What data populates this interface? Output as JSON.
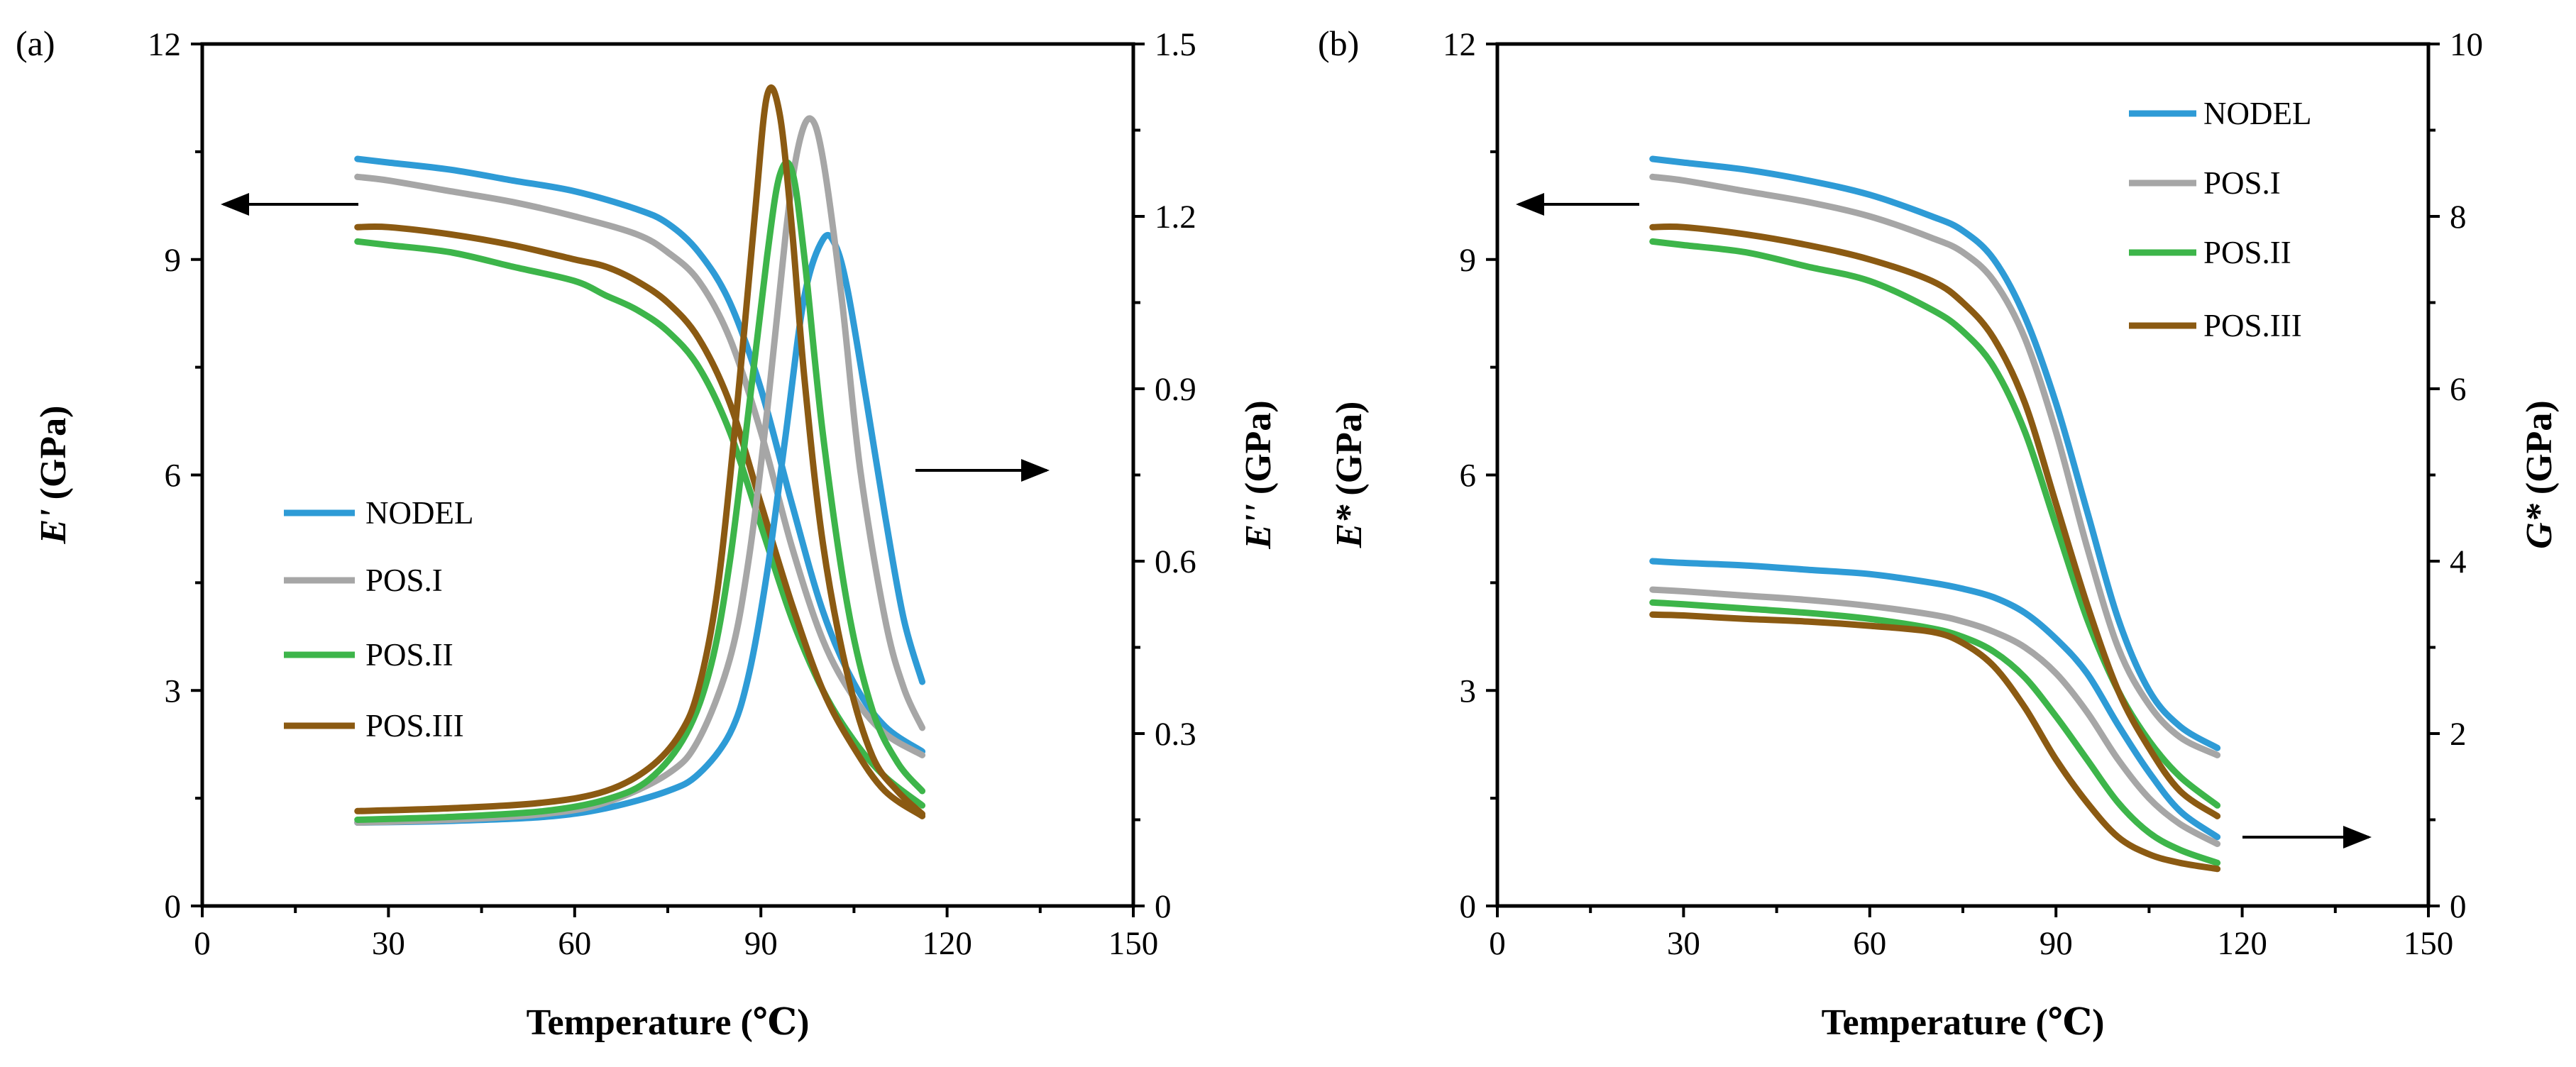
{
  "chart_data": [
    {
      "panel_label": "(a)",
      "type": "line",
      "xlabel": "Temperature (℃)",
      "ylabel_left_main": "E'",
      "ylabel_left_unit": " (GPa)",
      "ylabel_right_main": "E''",
      "ylabel_right_unit": " (GPa)",
      "xlim": [
        0,
        150
      ],
      "ylim_left": [
        0,
        12
      ],
      "ylim_right": [
        0,
        1.5
      ],
      "xticks": [
        "0",
        "30",
        "60",
        "90",
        "120",
        "150"
      ],
      "yticks_left": [
        "0",
        "3",
        "6",
        "9",
        "12"
      ],
      "yticks_right": [
        "0",
        "0.3",
        "0.6",
        "0.9",
        "1.2",
        "1.5"
      ],
      "legend": [
        "NODEL",
        "POS.I",
        "POS.II",
        "POS.III"
      ],
      "colors": [
        "#2e9bd6",
        "#a6a6a6",
        "#3db54a",
        "#8b5a12"
      ],
      "series": [
        {
          "name": "NODEL",
          "axis": "left",
          "color": "#2e9bd6",
          "x": [
            25,
            30,
            40,
            50,
            60,
            70,
            75,
            80,
            85,
            90,
            95,
            100,
            105,
            110,
            116
          ],
          "y": [
            10.4,
            10.35,
            10.25,
            10.1,
            9.95,
            9.7,
            9.5,
            9.1,
            8.4,
            7.2,
            5.6,
            4.1,
            3.1,
            2.5,
            2.15
          ]
        },
        {
          "name": "POS.I",
          "axis": "left",
          "color": "#a6a6a6",
          "x": [
            25,
            30,
            40,
            50,
            60,
            70,
            75,
            80,
            85,
            90,
            95,
            100,
            105,
            110,
            116
          ],
          "y": [
            10.15,
            10.1,
            9.95,
            9.8,
            9.6,
            9.35,
            9.1,
            8.7,
            7.9,
            6.6,
            5.0,
            3.7,
            2.9,
            2.4,
            2.1
          ]
        },
        {
          "name": "POS.II",
          "axis": "left",
          "color": "#3db54a",
          "x": [
            25,
            30,
            40,
            50,
            60,
            65,
            70,
            75,
            80,
            85,
            90,
            95,
            100,
            105,
            110,
            116
          ],
          "y": [
            9.25,
            9.2,
            9.1,
            8.9,
            8.7,
            8.5,
            8.3,
            8.0,
            7.5,
            6.6,
            5.3,
            4.0,
            3.0,
            2.3,
            1.8,
            1.4
          ]
        },
        {
          "name": "POS.III",
          "axis": "left",
          "color": "#8b5a12",
          "x": [
            25,
            30,
            40,
            50,
            60,
            65,
            70,
            75,
            80,
            85,
            90,
            95,
            100,
            105,
            110,
            116
          ],
          "y": [
            9.45,
            9.45,
            9.35,
            9.2,
            9.0,
            8.9,
            8.7,
            8.4,
            7.9,
            7.0,
            5.6,
            4.2,
            3.0,
            2.2,
            1.6,
            1.25
          ]
        },
        {
          "name": "NODEL",
          "axis": "right",
          "color": "#2e9bd6",
          "x": [
            25,
            40,
            55,
            65,
            75,
            80,
            85,
            88,
            91,
            94,
            97,
            100,
            102,
            104,
            107,
            110,
            113,
            116
          ],
          "y": [
            0.145,
            0.148,
            0.155,
            0.17,
            0.2,
            0.23,
            0.3,
            0.4,
            0.58,
            0.82,
            1.06,
            1.16,
            1.15,
            1.07,
            0.88,
            0.68,
            0.5,
            0.39
          ]
        },
        {
          "name": "POS.I",
          "axis": "right",
          "color": "#a6a6a6",
          "x": [
            25,
            40,
            55,
            65,
            75,
            80,
            85,
            88,
            91,
            94,
            96,
            98,
            100,
            103,
            106,
            110,
            113,
            116
          ],
          "y": [
            0.145,
            0.15,
            0.16,
            0.18,
            0.23,
            0.29,
            0.43,
            0.6,
            0.86,
            1.17,
            1.32,
            1.37,
            1.3,
            1.06,
            0.76,
            0.5,
            0.38,
            0.31
          ]
        },
        {
          "name": "POS.II",
          "axis": "right",
          "color": "#3db54a",
          "x": [
            25,
            40,
            55,
            65,
            72,
            78,
            82,
            85,
            88,
            91,
            93,
            95,
            97,
            100,
            104,
            108,
            112,
            116
          ],
          "y": [
            0.15,
            0.155,
            0.165,
            0.185,
            0.22,
            0.3,
            0.42,
            0.6,
            0.86,
            1.13,
            1.27,
            1.28,
            1.13,
            0.82,
            0.52,
            0.34,
            0.25,
            0.2
          ]
        },
        {
          "name": "POS.III",
          "axis": "right",
          "color": "#8b5a12",
          "x": [
            25,
            40,
            55,
            65,
            72,
            77,
            80,
            83,
            86,
            89,
            91,
            93,
            95,
            97,
            100,
            104,
            108,
            112,
            116
          ],
          "y": [
            0.165,
            0.17,
            0.18,
            0.2,
            0.24,
            0.3,
            0.38,
            0.55,
            0.85,
            1.2,
            1.41,
            1.38,
            1.18,
            0.92,
            0.63,
            0.4,
            0.26,
            0.2,
            0.16
          ]
        }
      ]
    },
    {
      "panel_label": "(b)",
      "type": "line",
      "xlabel": "Temperature (℃)",
      "ylabel_left_main": "E*",
      "ylabel_left_unit": " (GPa)",
      "ylabel_right_main": "G*",
      "ylabel_right_unit": " (GPa)",
      "xlim": [
        0,
        150
      ],
      "ylim_left": [
        0,
        12
      ],
      "ylim_right": [
        0,
        10
      ],
      "xticks": [
        "0",
        "30",
        "60",
        "90",
        "120",
        "150"
      ],
      "yticks_left": [
        "0",
        "3",
        "6",
        "9",
        "12"
      ],
      "yticks_right": [
        "0",
        "2",
        "4",
        "6",
        "8",
        "10"
      ],
      "legend": [
        "NODEL",
        "POS.I",
        "POS.II",
        "POS.III"
      ],
      "colors": [
        "#2e9bd6",
        "#a6a6a6",
        "#3db54a",
        "#8b5a12"
      ],
      "series": [
        {
          "name": "NODEL",
          "axis": "left",
          "color": "#2e9bd6",
          "x": [
            25,
            30,
            40,
            50,
            60,
            70,
            75,
            80,
            85,
            90,
            95,
            100,
            105,
            110,
            116
          ],
          "y": [
            10.4,
            10.35,
            10.25,
            10.1,
            9.9,
            9.6,
            9.4,
            9.0,
            8.2,
            7.0,
            5.5,
            4.0,
            3.0,
            2.5,
            2.2
          ]
        },
        {
          "name": "POS.I",
          "axis": "left",
          "color": "#a6a6a6",
          "x": [
            25,
            30,
            40,
            50,
            60,
            70,
            75,
            80,
            85,
            90,
            95,
            100,
            105,
            110,
            116
          ],
          "y": [
            10.15,
            10.1,
            9.95,
            9.8,
            9.6,
            9.3,
            9.1,
            8.7,
            7.9,
            6.6,
            5.0,
            3.6,
            2.8,
            2.35,
            2.1
          ]
        },
        {
          "name": "POS.II",
          "axis": "left",
          "color": "#3db54a",
          "x": [
            25,
            30,
            40,
            50,
            60,
            70,
            75,
            80,
            85,
            90,
            95,
            100,
            105,
            110,
            116
          ],
          "y": [
            9.25,
            9.2,
            9.1,
            8.9,
            8.7,
            8.3,
            8.0,
            7.5,
            6.6,
            5.3,
            4.0,
            3.0,
            2.3,
            1.8,
            1.4
          ]
        },
        {
          "name": "POS.III",
          "axis": "left",
          "color": "#8b5a12",
          "x": [
            25,
            30,
            40,
            50,
            60,
            70,
            75,
            80,
            85,
            90,
            95,
            100,
            105,
            110,
            116
          ],
          "y": [
            9.45,
            9.45,
            9.35,
            9.2,
            9.0,
            8.7,
            8.4,
            7.9,
            7.0,
            5.6,
            4.2,
            3.0,
            2.2,
            1.6,
            1.25
          ]
        },
        {
          "name": "NODEL",
          "axis": "right",
          "color": "#2e9bd6",
          "x": [
            25,
            30,
            40,
            50,
            60,
            70,
            75,
            80,
            85,
            90,
            95,
            100,
            105,
            110,
            116
          ],
          "y": [
            4.0,
            3.98,
            3.95,
            3.9,
            3.85,
            3.75,
            3.68,
            3.58,
            3.4,
            3.1,
            2.7,
            2.1,
            1.55,
            1.1,
            0.8
          ]
        },
        {
          "name": "POS.I",
          "axis": "right",
          "color": "#a6a6a6",
          "x": [
            25,
            30,
            40,
            50,
            60,
            70,
            75,
            80,
            85,
            90,
            95,
            100,
            105,
            110,
            116
          ],
          "y": [
            3.67,
            3.65,
            3.6,
            3.55,
            3.48,
            3.38,
            3.3,
            3.18,
            3.0,
            2.7,
            2.25,
            1.7,
            1.25,
            0.95,
            0.72
          ]
        },
        {
          "name": "POS.II",
          "axis": "right",
          "color": "#3db54a",
          "x": [
            25,
            30,
            40,
            50,
            60,
            70,
            75,
            80,
            85,
            90,
            95,
            100,
            105,
            110,
            116
          ],
          "y": [
            3.52,
            3.5,
            3.45,
            3.4,
            3.33,
            3.22,
            3.12,
            2.95,
            2.65,
            2.2,
            1.7,
            1.2,
            0.85,
            0.65,
            0.5
          ]
        },
        {
          "name": "POS.III",
          "axis": "right",
          "color": "#8b5a12",
          "x": [
            25,
            30,
            40,
            50,
            60,
            70,
            75,
            80,
            85,
            90,
            95,
            100,
            105,
            110,
            116
          ],
          "y": [
            3.38,
            3.37,
            3.33,
            3.3,
            3.25,
            3.18,
            3.05,
            2.78,
            2.3,
            1.7,
            1.2,
            0.8,
            0.6,
            0.5,
            0.43
          ]
        }
      ]
    }
  ]
}
